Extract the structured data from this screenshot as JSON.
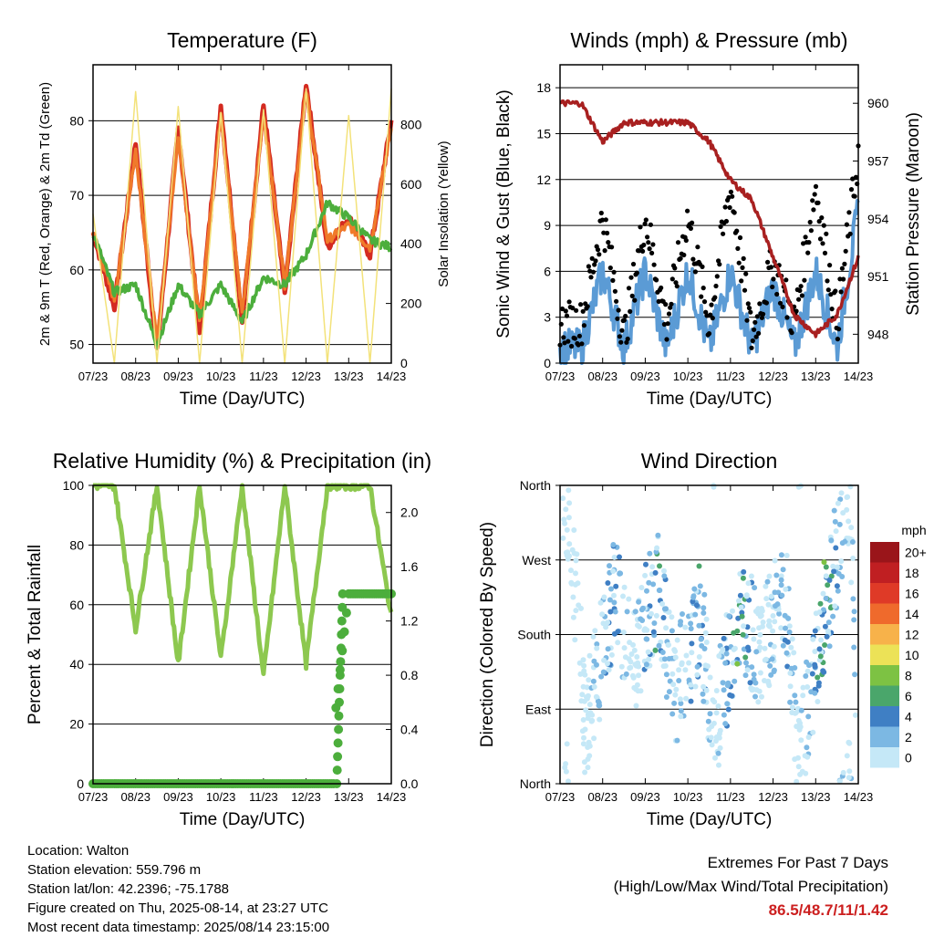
{
  "x_tick_labels": [
    "07/23",
    "08/23",
    "09/23",
    "10/23",
    "11/23",
    "12/23",
    "13/23",
    "14/23"
  ],
  "chart_data": [
    {
      "type": "line",
      "title": "Temperature (F)",
      "xlabel": "Time (Day/UTC)",
      "ylabel": "2m & 9m T (Red, Orange) & 2m Td (Green)",
      "ylabel_right": "Solar Insolation (Yellow)",
      "ylim": [
        47.5,
        87.5
      ],
      "yticks": [
        50,
        60,
        70,
        80
      ],
      "ylim_right": [
        0,
        1000
      ],
      "yticks_right": [
        0,
        200,
        400,
        600,
        800
      ],
      "x": [
        7,
        7.5,
        8,
        8.5,
        9,
        9.5,
        10,
        10.5,
        11,
        11.5,
        12,
        12.5,
        13,
        13.5,
        14
      ],
      "series": [
        {
          "name": "2m T",
          "color": "#d42a20",
          "values": [
            65,
            55,
            77,
            49,
            79,
            52,
            82,
            53,
            82,
            57,
            85,
            63,
            67,
            62,
            80
          ]
        },
        {
          "name": "9m T",
          "color": "#f07a2a",
          "values": [
            65,
            56,
            76,
            50,
            78,
            53,
            81,
            54,
            81,
            58,
            84,
            64,
            66,
            63,
            79
          ]
        },
        {
          "name": "2m Td",
          "color": "#4cae3c",
          "values": [
            65,
            57,
            58,
            50,
            58,
            54,
            58,
            53,
            59,
            58,
            62,
            69,
            67,
            64,
            63
          ]
        },
        {
          "name": "Solar Insolation",
          "color": "#f3e27a",
          "axis": "right",
          "values": [
            500,
            0,
            910,
            0,
            860,
            0,
            840,
            0,
            850,
            0,
            920,
            0,
            830,
            0,
            920
          ]
        }
      ]
    },
    {
      "type": "scatter",
      "title": "Winds (mph) & Pressure (mb)",
      "xlabel": "Time (Day/UTC)",
      "ylabel": "Sonic Wind & Gust (Blue, Black)",
      "ylabel_right": "Station Pressure (Maroon)",
      "ylim": [
        0,
        19.5
      ],
      "yticks": [
        0,
        3,
        6,
        9,
        12,
        15,
        18
      ],
      "ylim_right": [
        946.5,
        962
      ],
      "yticks_right": [
        948,
        951,
        954,
        957,
        960
      ],
      "x": [
        7,
        7.5,
        8,
        8.5,
        9,
        9.5,
        10,
        10.5,
        11,
        11.5,
        12,
        12.5,
        13,
        13.5,
        14
      ],
      "series": [
        {
          "name": "Sonic Wind",
          "color": "#5b9bd5",
          "values": [
            1,
            1,
            6,
            1,
            6,
            1,
            6,
            1,
            6,
            1,
            5,
            1,
            6,
            1,
            10
          ]
        },
        {
          "name": "Gust",
          "color": "#000000",
          "values": [
            2,
            2,
            9,
            1,
            9,
            2,
            9,
            2,
            11,
            1,
            6,
            2,
            11,
            2,
            13
          ]
        },
        {
          "name": "Station Pressure",
          "color": "#a82020",
          "axis": "right",
          "values": [
            960,
            960,
            958,
            959,
            959,
            959,
            959,
            958,
            956,
            955,
            952,
            949,
            948,
            949,
            952
          ]
        }
      ]
    },
    {
      "type": "line",
      "title": "Relative Humidity (%) & Precipitation (in)",
      "xlabel": "Time (Day/UTC)",
      "ylabel": "Percent & Total Rainfall",
      "ylim": [
        0,
        100
      ],
      "yticks": [
        0,
        20,
        40,
        60,
        80,
        100
      ],
      "ylim_right": [
        0,
        2.2
      ],
      "yticks_right": [
        0.0,
        0.4,
        0.8,
        1.2,
        1.6,
        2.0
      ],
      "x": [
        7,
        7.5,
        8,
        8.5,
        9,
        9.5,
        10,
        10.5,
        11,
        11.5,
        12,
        12.5,
        13,
        13.5,
        14
      ],
      "series": [
        {
          "name": "Relative Humidity",
          "color": "#8dc84f",
          "values": [
            100,
            100,
            52,
            100,
            40,
            100,
            42,
            100,
            36,
            100,
            40,
            100,
            100,
            100,
            56
          ]
        },
        {
          "name": "Total Precipitation",
          "color": "#4cae3c",
          "axis": "right",
          "values": [
            0,
            0,
            0,
            0,
            0,
            0,
            0,
            0,
            0,
            0,
            0,
            0,
            1.4,
            1.4,
            1.4
          ]
        }
      ]
    },
    {
      "type": "scatter",
      "title": "Wind Direction",
      "xlabel": "Time (Day/UTC)",
      "ylabel": "Direction (Colored By Speed)",
      "ytick_labels": [
        "North",
        "East",
        "South",
        "West",
        "North"
      ],
      "colorbar": {
        "title": "mph",
        "labels": [
          "0",
          "2",
          "4",
          "6",
          "8",
          "10",
          "12",
          "14",
          "16",
          "18",
          "20+"
        ],
        "colors": [
          "#c5e8f7",
          "#7cb8e3",
          "#3f7fc4",
          "#4aa66b",
          "#7dc243",
          "#ece257",
          "#f7b24a",
          "#ef6a2c",
          "#df3a27",
          "#c01f22",
          "#9a151a"
        ]
      },
      "x": [
        7.2,
        7.6,
        8.3,
        8.7,
        9.3,
        9.7,
        10.3,
        10.6,
        11.2,
        11.7,
        12.3,
        12.6,
        13.2,
        13.8,
        14
      ],
      "series": [
        {
          "name": "Direction (deg)",
          "values": [
            340,
            70,
            230,
            150,
            240,
            110,
            200,
            60,
            210,
            160,
            230,
            30,
            200,
            360,
            10
          ]
        },
        {
          "name": "Speed (mph)",
          "values": [
            1,
            1,
            5,
            1,
            6,
            2,
            6,
            1,
            7,
            1,
            4,
            1,
            7,
            1,
            8
          ]
        }
      ]
    }
  ],
  "info": {
    "location": "Location: Walton",
    "elevation": "Station elevation: 559.796 m",
    "latlon": "Station lat/lon: 42.2396; -75.1788",
    "created": "Figure created on Thu, 2025-08-14, at 23:27 UTC",
    "latest": "Most recent data timestamp: 2025/08/14 23:15:00"
  },
  "extremes": {
    "line1": "Extremes For Past 7 Days",
    "line2": "(High/Low/Max Wind/Total Precipitation)",
    "values": "86.5/48.7/11/1.42"
  }
}
